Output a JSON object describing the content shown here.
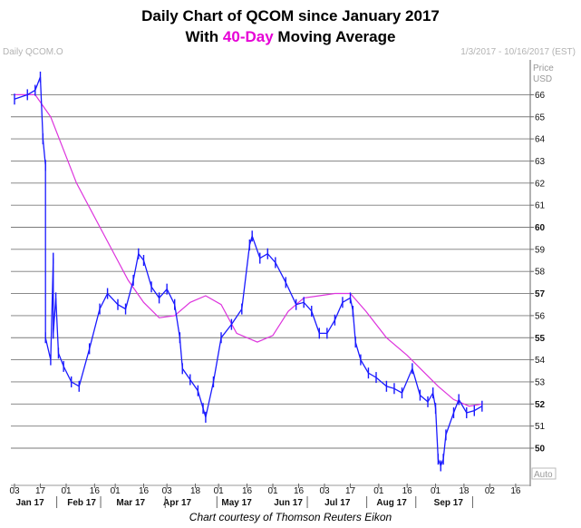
{
  "titles": {
    "line1": "Daily Chart of QCOM since January 2017",
    "line2_pre": "With ",
    "line2_accent": "40-Day",
    "line2_post": " Moving Average"
  },
  "header": {
    "left": "Daily QCOM.O",
    "right": "1/3/2017 - 10/16/2017 (EST)"
  },
  "credit": "Chart courtesy of Thomson Reuters Eikon",
  "colors": {
    "price": "#1a1aff",
    "ma": "#dd33dd",
    "accent": "#e600d6"
  },
  "chart_data": {
    "type": "line",
    "ylabel": "Price USD",
    "ylabel_parts": [
      "Price",
      "USD"
    ],
    "ylim": [
      49,
      67
    ],
    "y_ticks": [
      50,
      51,
      52,
      53,
      54,
      55,
      56,
      57,
      58,
      59,
      60,
      61,
      62,
      63,
      64,
      65,
      66
    ],
    "y_bold": [
      50,
      52,
      55,
      57,
      60
    ],
    "auto_label": "Auto",
    "x_day_labels": [
      "03",
      "17",
      "01",
      "16",
      "01",
      "16",
      "03",
      "18",
      "01",
      "16",
      "01",
      "16",
      "03",
      "17",
      "01",
      "16",
      "01",
      "18",
      "02",
      "16"
    ],
    "x_day_index": [
      0,
      10,
      20,
      31,
      39,
      50,
      59,
      70,
      79,
      90,
      100,
      110,
      120,
      130,
      141,
      152,
      163,
      174,
      184,
      194
    ],
    "x_month_labels": [
      "Jan 17",
      "Feb 17",
      "Mar 17",
      "Apr 17",
      "May 17",
      "Jun 17",
      "Jul 17",
      "Aug 17",
      "Sep 17"
    ],
    "x_month_index": [
      6,
      26,
      45,
      63,
      86,
      106,
      125,
      146,
      168
    ],
    "total_days": 198,
    "series": [
      {
        "name": "QCOM daily close",
        "x": [
          0,
          5,
          8,
          10,
          11,
          12,
          12,
          14,
          15,
          15,
          16,
          17,
          19,
          22,
          25,
          29,
          33,
          36,
          40,
          43,
          46,
          48,
          50,
          53,
          56,
          59,
          62,
          64,
          65,
          68,
          71,
          73,
          74,
          77,
          80,
          84,
          88,
          91,
          92,
          95,
          98,
          101,
          105,
          109,
          112,
          115,
          118,
          121,
          124,
          127,
          130,
          131,
          132,
          134,
          137,
          140,
          144,
          147,
          150,
          154,
          157,
          160,
          162,
          163,
          164,
          165,
          166,
          167,
          170,
          172,
          175,
          178,
          181
        ],
        "values": [
          65.8,
          66.0,
          66.2,
          66.8,
          64.0,
          62.8,
          55.0,
          54.0,
          58.6,
          55.2,
          56.8,
          54.3,
          53.7,
          53.0,
          52.8,
          54.5,
          56.3,
          57.0,
          56.5,
          56.3,
          57.6,
          58.8,
          58.5,
          57.3,
          56.8,
          57.2,
          56.5,
          55.0,
          53.6,
          53.1,
          52.6,
          51.8,
          51.4,
          53.0,
          55.0,
          55.6,
          56.3,
          59.2,
          59.6,
          58.6,
          58.8,
          58.4,
          57.5,
          56.5,
          56.6,
          56.2,
          55.2,
          55.2,
          55.8,
          56.6,
          56.8,
          56.2,
          54.8,
          54.0,
          53.4,
          53.2,
          52.8,
          52.7,
          52.5,
          53.6,
          52.4,
          52.1,
          52.5,
          51.8,
          49.5,
          49.2,
          49.5,
          50.6,
          51.6,
          52.2,
          51.6,
          51.7,
          51.9
        ]
      },
      {
        "name": "40-Day Moving Average",
        "x": [
          0,
          8,
          14,
          24,
          34,
          44,
          50,
          56,
          62,
          68,
          74,
          80,
          86,
          94,
          100,
          106,
          112,
          118,
          124,
          130,
          136,
          144,
          152,
          158,
          164,
          170,
          176,
          181
        ],
        "values": [
          66.0,
          66.0,
          65.0,
          62.0,
          59.8,
          57.6,
          56.6,
          55.9,
          56.0,
          56.6,
          56.9,
          56.5,
          55.2,
          54.8,
          55.1,
          56.2,
          56.8,
          56.9,
          57.0,
          57.0,
          56.2,
          55.0,
          54.2,
          53.5,
          52.8,
          52.2,
          51.9,
          52.0
        ]
      }
    ]
  }
}
